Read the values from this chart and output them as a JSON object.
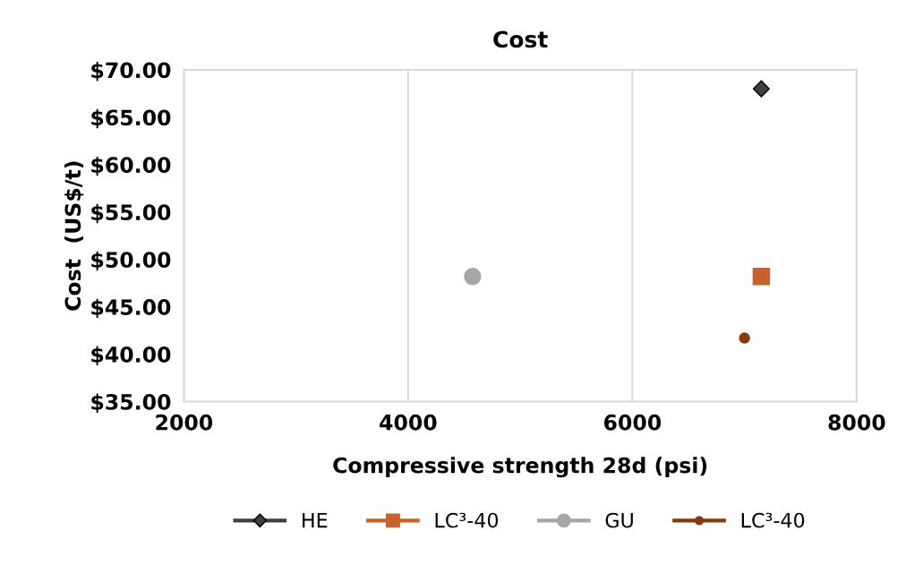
{
  "chart_data": {
    "type": "scatter",
    "title": "Cost",
    "xlabel": "Compressive strength 28d (psi)",
    "ylabel": "Cost  (US$/t)",
    "series": [
      {
        "name": "HE",
        "color": "#404040",
        "marker": "diamond",
        "x": [
          7150
        ],
        "values": [
          68.0
        ]
      },
      {
        "name": "LC³-40",
        "color": "#c8612a",
        "marker": "square",
        "x": [
          7150
        ],
        "values": [
          48.2
        ]
      },
      {
        "name": "GU",
        "color": "#a6a6a6",
        "marker": "circle",
        "x": [
          4575
        ],
        "values": [
          48.2
        ]
      },
      {
        "name": "LC³-40",
        "color": "#843c0c",
        "marker": "circle",
        "x": [
          7000
        ],
        "values": [
          41.7
        ]
      }
    ],
    "xlim": [
      2000,
      8000
    ],
    "xticks": [
      2000,
      4000,
      6000,
      8000
    ],
    "ylim": [
      35,
      70
    ],
    "yticks": [
      {
        "value": 35,
        "label": "$35.00"
      },
      {
        "value": 40,
        "label": "$40.00"
      },
      {
        "value": 45,
        "label": "$45.00"
      },
      {
        "value": 50,
        "label": "$50.00"
      },
      {
        "value": 55,
        "label": "$55.00"
      },
      {
        "value": 60,
        "label": "$60.00"
      },
      {
        "value": 65,
        "label": "$65.00"
      },
      {
        "value": 70,
        "label": "$70.00"
      }
    ],
    "grid": "x",
    "legend": "bottom"
  }
}
